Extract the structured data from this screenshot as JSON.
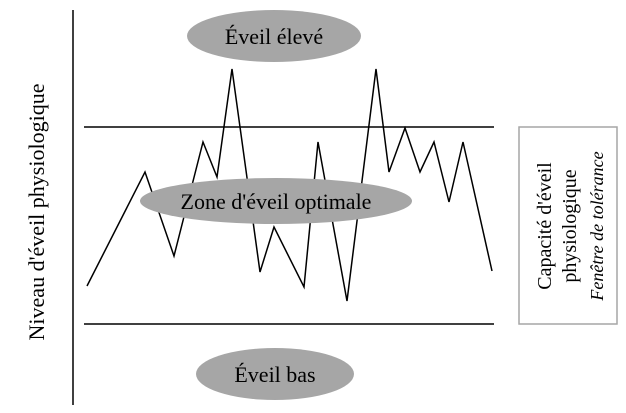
{
  "y_axis_label": "Niveau d'éveil physiologique",
  "zones": {
    "high": "Éveil élevé",
    "optimal": "Zone d'éveil optimale",
    "low": "Éveil bas"
  },
  "side_box": {
    "line1": "Capacité d'éveil",
    "line2": "physiologique",
    "line3": "Fenêtre de tolérance"
  },
  "colors": {
    "zone_fill": "#a6a6a6",
    "line": "#000000",
    "box_border": "#a6a6a6"
  }
}
